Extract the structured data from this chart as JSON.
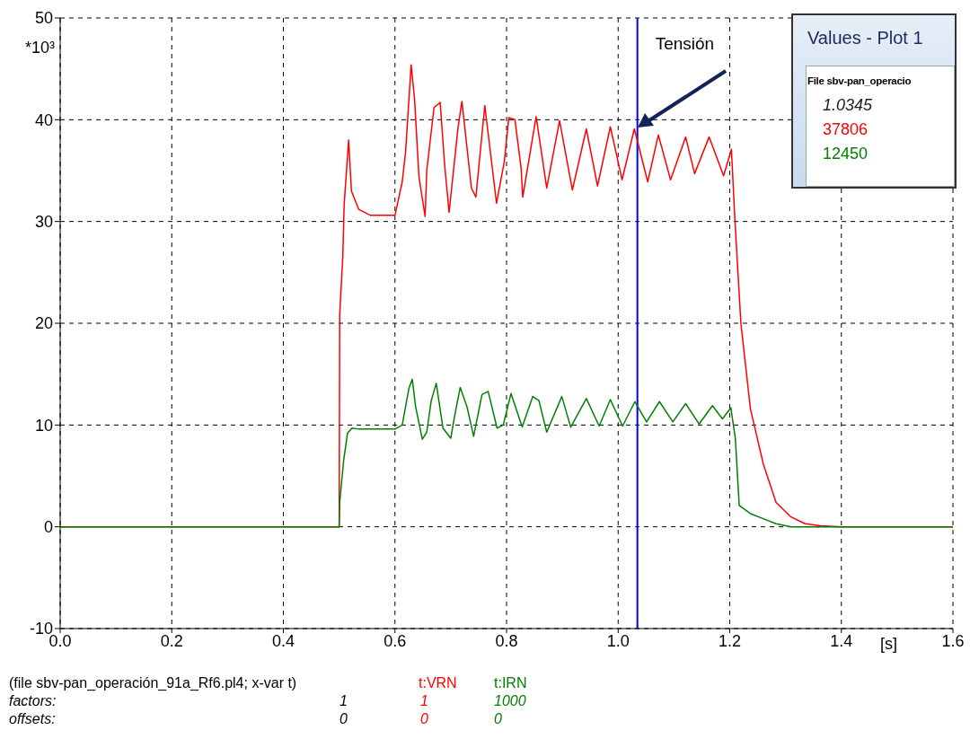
{
  "chart_data": {
    "type": "line",
    "xlabel": "[s]",
    "ylabel": "*10³",
    "xlim": [
      0,
      1.6
    ],
    "xticks": [
      {
        "value": 0,
        "label": "0.0"
      },
      0.2,
      0.4,
      0.6,
      0.8,
      {
        "value": 1,
        "label": "1.0"
      },
      1.2,
      1.4,
      1.6
    ],
    "ylim": [
      -10,
      50
    ],
    "yticks": [
      -10,
      0,
      10,
      20,
      30,
      40,
      50
    ],
    "grid": true,
    "legend": "bottom left",
    "series": [
      {
        "name": "t:VRN",
        "color": "#ff0000",
        "x": [
          0,
          0.5,
          0.501,
          0.5065,
          0.509,
          0.517,
          0.522,
          0.535,
          0.556,
          0.6,
          0.613,
          0.619,
          0.629,
          0.635,
          0.643,
          0.654,
          0.657,
          0.67,
          0.681,
          0.689,
          0.697,
          0.713,
          0.72,
          0.737,
          0.745,
          0.761,
          0.782,
          0.796,
          0.804,
          0.815,
          0.826,
          0.829,
          0.853,
          0.872,
          0.895,
          0.918,
          0.943,
          0.963,
          0.986,
          1.007,
          1.029,
          1.053,
          1.072,
          1.094,
          1.121,
          1.137,
          1.163,
          1.189,
          1.203,
          1.209,
          1.22,
          1.237,
          1.26,
          1.283,
          1.309,
          1.335,
          1.362,
          1.4,
          1.6
        ],
        "values": [
          0,
          0,
          20.9,
          26.5,
          31.7,
          38,
          33,
          31.2,
          30.6,
          30.6,
          33.9,
          36.8,
          45.4,
          42.1,
          34.4,
          30.5,
          35,
          41.2,
          41.7,
          35.6,
          30.9,
          39.2,
          41.8,
          33.3,
          32.4,
          41.4,
          31.8,
          35.9,
          40.2,
          40,
          35.3,
          32.4,
          40.3,
          33.3,
          39.9,
          33.1,
          39.1,
          33.5,
          39.3,
          34.1,
          39.1,
          33.9,
          38.5,
          34.1,
          38.3,
          34.7,
          38.3,
          34.5,
          37.1,
          30.4,
          20,
          11.6,
          6.2,
          2.4,
          1,
          0.3,
          0.1,
          0,
          0
        ]
      },
      {
        "name": "t:IRN",
        "color": "#008000",
        "x": [
          0,
          0.5,
          0.501,
          0.508,
          0.515,
          0.523,
          0.535,
          0.6,
          0.613,
          0.625,
          0.631,
          0.637,
          0.649,
          0.657,
          0.665,
          0.674,
          0.686,
          0.7,
          0.708,
          0.717,
          0.729,
          0.741,
          0.756,
          0.767,
          0.783,
          0.794,
          0.808,
          0.828,
          0.847,
          0.858,
          0.872,
          0.899,
          0.915,
          0.943,
          0.966,
          0.986,
          1.008,
          1.03,
          1.051,
          1.074,
          1.098,
          1.121,
          1.145,
          1.169,
          1.187,
          1.202,
          1.21,
          1.217,
          1.237,
          1.26,
          1.283,
          1.31,
          1.6
        ],
        "values": [
          0,
          0,
          2.4,
          6.5,
          9.2,
          9.7,
          9.6,
          9.6,
          10,
          13.6,
          14.5,
          11.8,
          8.6,
          9.3,
          12.4,
          14.1,
          9.7,
          8.7,
          11.2,
          13.7,
          11.8,
          8.9,
          13,
          13.3,
          9.7,
          10,
          13.1,
          9.8,
          12.8,
          12.4,
          9.3,
          12.8,
          9.8,
          12.6,
          9.9,
          12.5,
          9.9,
          12.3,
          10.3,
          12.3,
          10.3,
          12.1,
          10.1,
          11.9,
          10.6,
          11.7,
          8.7,
          2.1,
          1.3,
          0.8,
          0.3,
          0,
          0
        ]
      }
    ],
    "ref_lines": [
      {
        "axis": "x",
        "value": 1.0345,
        "color": "#0000ff"
      }
    ],
    "annotations": [
      "Tensión",
      "Values - Plot 1",
      "File sbv-pan_operacio",
      "1.0345",
      "37806",
      "12450",
      "(file sbv-pan_operación_91a_Rf6.pl4; x-var t)",
      "factors:",
      "1",
      "1",
      "1000",
      "offsets:",
      "0",
      "0",
      "0"
    ]
  }
}
